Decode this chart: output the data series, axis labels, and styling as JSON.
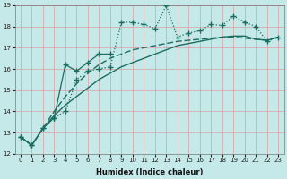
{
  "title": "",
  "xlabel": "Humidex (Indice chaleur)",
  "xlim": [
    -0.5,
    23.5
  ],
  "ylim": [
    12,
    19
  ],
  "yticks": [
    12,
    13,
    14,
    15,
    16,
    17,
    18,
    19
  ],
  "xticks": [
    0,
    1,
    2,
    3,
    4,
    5,
    6,
    7,
    8,
    9,
    10,
    11,
    12,
    13,
    14,
    15,
    16,
    17,
    18,
    19,
    20,
    21,
    22,
    23
  ],
  "bg_color": "#c5e8e8",
  "grid_color_h": "#d8a0a0",
  "grid_color_v": "#d8a0a0",
  "line_color": "#1a6e60",
  "line1_x": [
    0,
    1,
    2,
    3,
    4,
    5,
    6,
    7,
    8
  ],
  "line1_y": [
    12.8,
    12.4,
    13.2,
    13.7,
    16.2,
    15.9,
    16.3,
    16.7,
    16.7
  ],
  "line2_x": [
    0,
    1,
    2,
    3,
    4,
    5,
    6,
    7,
    8,
    9,
    10,
    11,
    12,
    13,
    14,
    15,
    16,
    17,
    18,
    19,
    20,
    21,
    22,
    23
  ],
  "line2_y": [
    12.8,
    12.4,
    13.2,
    13.7,
    14.0,
    15.5,
    15.9,
    16.0,
    16.1,
    18.2,
    18.2,
    18.1,
    17.9,
    19.0,
    17.5,
    17.7,
    17.8,
    18.1,
    18.05,
    18.5,
    18.2,
    18.0,
    17.3,
    17.5
  ],
  "line3_x": [
    0,
    1,
    2,
    3,
    4,
    5,
    6,
    7,
    8,
    9,
    10,
    11,
    12,
    13,
    14,
    15,
    16,
    17,
    18,
    19,
    20,
    21,
    22,
    23
  ],
  "line3_y": [
    12.8,
    12.4,
    13.2,
    13.8,
    14.3,
    14.7,
    15.1,
    15.5,
    15.8,
    16.1,
    16.3,
    16.5,
    16.7,
    16.9,
    17.1,
    17.2,
    17.3,
    17.4,
    17.5,
    17.55,
    17.55,
    17.4,
    17.35,
    17.5
  ],
  "line4_x": [
    0,
    1,
    2,
    3,
    4,
    5,
    6,
    7,
    8,
    9,
    10,
    11,
    12,
    13,
    14,
    15,
    16,
    17,
    18,
    19,
    20,
    21,
    22,
    23
  ],
  "line4_y": [
    12.8,
    12.4,
    13.2,
    14.0,
    14.7,
    15.3,
    15.8,
    16.2,
    16.5,
    16.7,
    16.9,
    17.0,
    17.1,
    17.2,
    17.3,
    17.35,
    17.4,
    17.45,
    17.5,
    17.5,
    17.45,
    17.4,
    17.35,
    17.5
  ]
}
